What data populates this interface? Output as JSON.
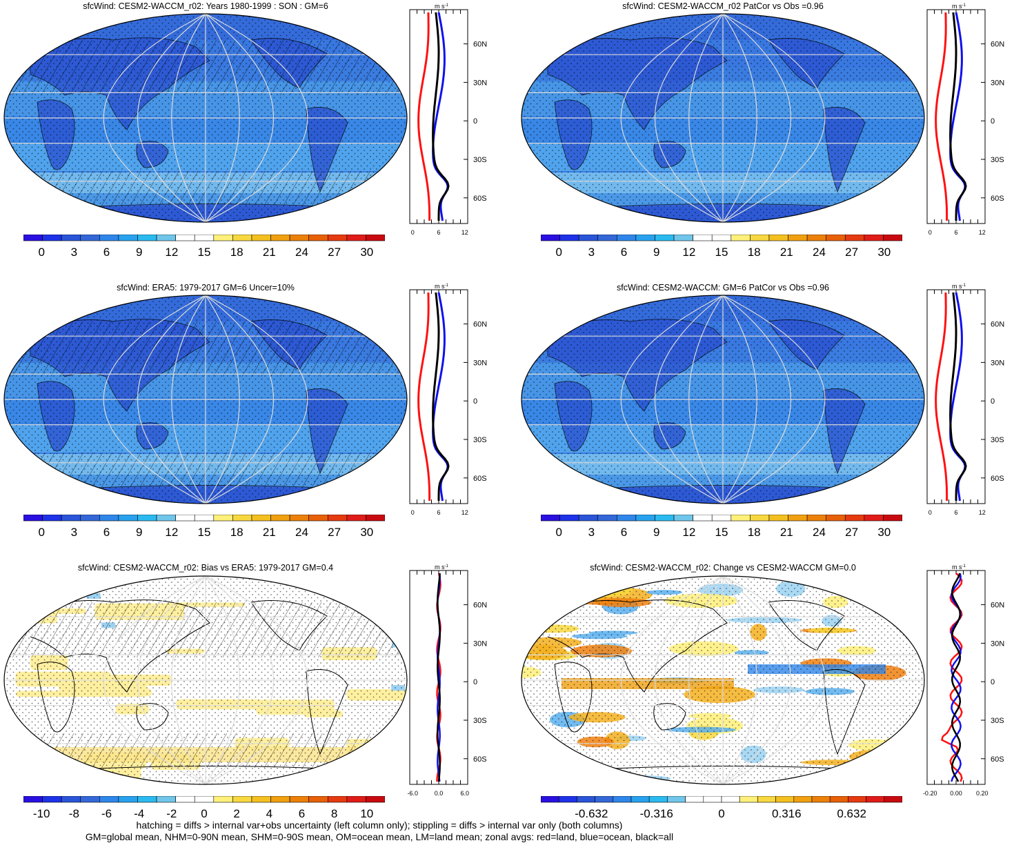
{
  "panels": [
    {
      "title": "sfcWind: CESM2-WACCM_r02: Years 1980-1999 : SON : GM=6",
      "kind": "wind",
      "hatch": true,
      "stipple": true
    },
    {
      "title": "sfcWind: CESM2-WACCM_r02 PatCor vs Obs =0.96",
      "kind": "wind",
      "hatch": false,
      "stipple": true
    },
    {
      "title": "sfcWind: ERA5: 1979-2017 GM=6 Uncer=10%",
      "kind": "wind",
      "hatch": true,
      "stipple": true
    },
    {
      "title": "sfcWind: CESM2-WACCM: GM=6 PatCor vs Obs =0.96",
      "kind": "wind",
      "hatch": false,
      "stipple": true
    },
    {
      "title": "sfcWind: CESM2-WACCM_r02: Bias vs ERA5: 1979-2017  GM=0.4",
      "kind": "bias",
      "hatch": true,
      "stipple": true
    },
    {
      "title": "sfcWind: CESM2-WACCM_r02: Change vs CESM2-WACCM GM=0.0",
      "kind": "change",
      "hatch": false,
      "stipple": true
    }
  ],
  "zonal": {
    "unit": "m s",
    "unit_exp": "-1",
    "lat_labels": [
      "60N",
      "30N",
      "0",
      "30S",
      "60S"
    ],
    "wind_ticks": [
      "0",
      "6",
      "12"
    ],
    "bias_ticks": [
      "-6.0",
      "0.0",
      "6.0"
    ],
    "change_ticks": [
      "-0.20",
      "0.00",
      "0.20"
    ]
  },
  "colorbars": {
    "wind_labels": [
      "0",
      "3",
      "6",
      "9",
      "12",
      "15",
      "18",
      "21",
      "24",
      "27",
      "30"
    ],
    "bias_labels": [
      "-10",
      "-8",
      "-6",
      "-4",
      "-2",
      "0",
      "2",
      "4",
      "6",
      "8",
      "10"
    ],
    "change_labels": [
      "-0.632",
      "-0.316",
      "0",
      "0.316",
      "0.632"
    ],
    "colors": [
      "#2a10e0",
      "#1e32e8",
      "#2a55d8",
      "#3468d8",
      "#2f86ea",
      "#28a2ee",
      "#2bbaf0",
      "#70c6ea",
      "#ffffff",
      "#ffffff",
      "#fff07a",
      "#f8d840",
      "#f4c020",
      "#f0a010",
      "#ec8008",
      "#e86008",
      "#e63a10",
      "#e01c18",
      "#c80a10"
    ],
    "change_colors": [
      "#2a10e0",
      "#1e32e8",
      "#2a55d8",
      "#3468d8",
      "#2f86ea",
      "#28a2ee",
      "#2bbaf0",
      "#70c6ea",
      "#ffffff",
      "#ffffff",
      "#ffffff",
      "#fff07a",
      "#f8d840",
      "#f4c020",
      "#f0a010",
      "#ec8008",
      "#e86008",
      "#e63a10",
      "#e01c18",
      "#c80a10"
    ]
  },
  "line_colors": {
    "land": "#ff1010",
    "ocean": "#1010ee",
    "all": "#000000"
  },
  "footer": {
    "line1": "hatching = diffs > internal var+obs uncertainty (left column only); stippling = diffs > internal var only (both columns)",
    "line2": "GM=global mean, NHM=0-90N mean, SHM=0-90S mean, OM=ocean mean, LM=land mean; zonal avgs: red=land, blue=ocean, black=all"
  }
}
